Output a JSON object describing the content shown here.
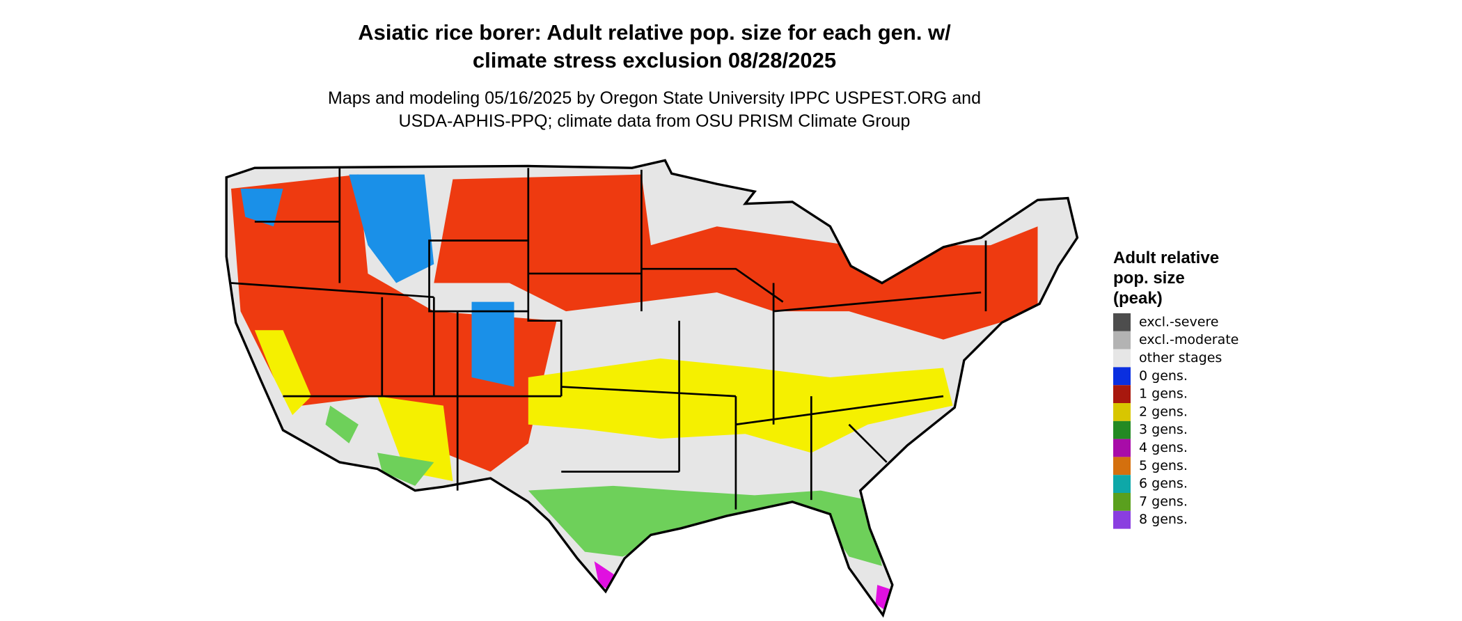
{
  "header": {
    "title_lines": [
      "Asiatic rice borer: Adult relative pop. size for each gen. w/",
      "climate stress exclusion 08/28/2025"
    ],
    "subtitle_lines": [
      "Maps and modeling 05/16/2025 by Oregon State University IPPC USPEST.ORG and",
      "USDA-APHIS-PPQ; climate data from OSU PRISM Climate Group"
    ]
  },
  "legend": {
    "title_lines": [
      "Adult relative",
      "pop. size",
      "(peak)"
    ],
    "items": [
      {
        "label": "excl.-severe",
        "color": "#4d4d4d"
      },
      {
        "label": "excl.-moderate",
        "color": "#b3b3b3"
      },
      {
        "label": "other stages",
        "color": "#e6e6e6"
      },
      {
        "label": "0 gens.",
        "color": "#0a2fe0"
      },
      {
        "label": "1 gens.",
        "color": "#a8180e"
      },
      {
        "label": "2 gens.",
        "color": "#d8c600"
      },
      {
        "label": "3 gens.",
        "color": "#238a23"
      },
      {
        "label": "4 gens.",
        "color": "#a80ca8"
      },
      {
        "label": "5 gens.",
        "color": "#d4700e"
      },
      {
        "label": "6 gens.",
        "color": "#0ea8a8"
      },
      {
        "label": "7 gens.",
        "color": "#5aa01e"
      },
      {
        "label": "8 gens.",
        "color": "#8a3ee0"
      }
    ]
  }
}
